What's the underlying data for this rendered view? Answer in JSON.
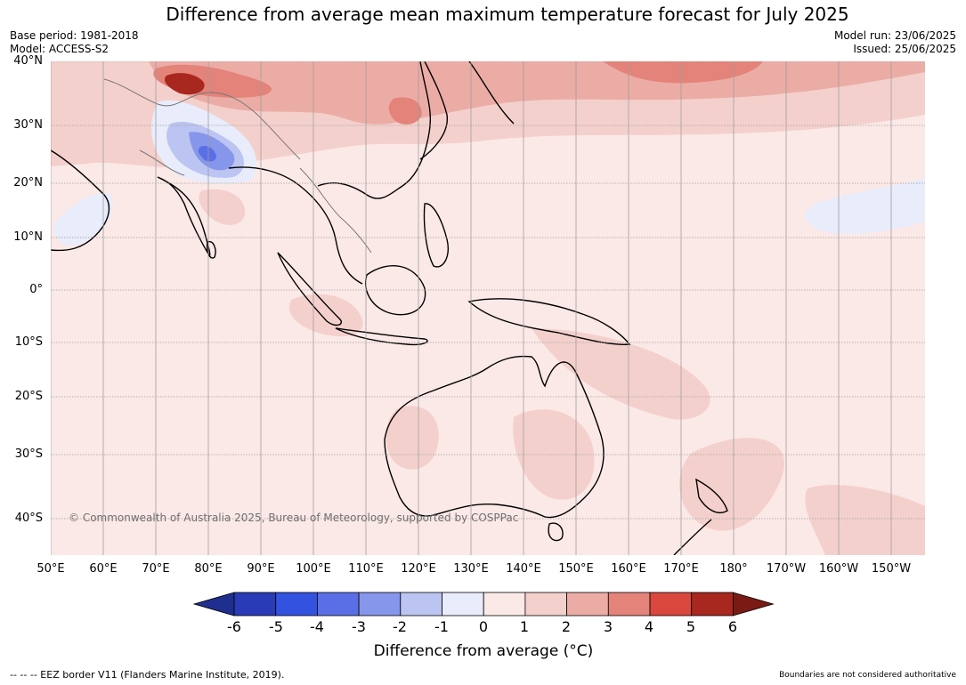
{
  "title": "Difference from average mean maximum temperature forecast for July 2025",
  "meta_left": {
    "base_period": "Base period: 1981-2018",
    "model": "Model: ACCESS-S2"
  },
  "meta_right": {
    "model_run": "Model run: 23/06/2025",
    "issued": "Issued: 25/06/2025"
  },
  "lat_labels": [
    "40°N",
    "30°N",
    "20°N",
    "10°N",
    "0°",
    "10°S",
    "20°S",
    "30°S",
    "40°S"
  ],
  "lon_labels": [
    "50°E",
    "60°E",
    "70°E",
    "80°E",
    "90°E",
    "100°E",
    "110°E",
    "120°E",
    "130°E",
    "140°E",
    "150°E",
    "160°E",
    "170°E",
    "180°",
    "170°W",
    "160°W",
    "150°W"
  ],
  "colorbar": {
    "title": "Difference from average (°C)",
    "ticks": [
      "-6",
      "-5",
      "-4",
      "-3",
      "-2",
      "-1",
      "0",
      "1",
      "2",
      "3",
      "4",
      "5",
      "6"
    ],
    "colors": [
      "#1f2f8f",
      "#2a3bb8",
      "#3452e0",
      "#5a6fe6",
      "#8696ea",
      "#bcc4f2",
      "#e8ecfb",
      "#fbe9e7",
      "#f4d0cc",
      "#ecaca6",
      "#e38379",
      "#d9473d",
      "#a8271f",
      "#7a1a14"
    ]
  },
  "copyright": "© Commonwealth of Australia 2025, Bureau of Meteorology, supported by COSPPac",
  "footer_left": "-- -- -- EEZ border V11 (Flanders Marine Institute, 2019).",
  "footer_right": "Boundaries are not considered authoritative",
  "map_colors": {
    "background": "#fbe9e7",
    "land_line": "#000000",
    "grid": "#9e9e9e"
  }
}
